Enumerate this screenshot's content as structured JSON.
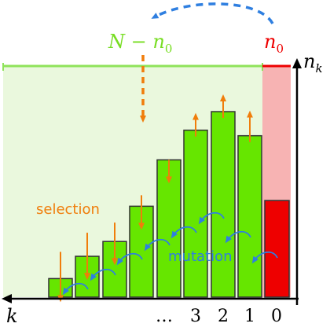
{
  "labels": {
    "N_minus_n0": {
      "main": "N",
      "op": " − ",
      "var": "n",
      "sub": "0"
    },
    "n0": {
      "var": "n",
      "sub": "0"
    },
    "nk": {
      "var": "n",
      "sub": "k"
    },
    "k": "k",
    "selection": "selection",
    "mutation": "mutation",
    "ellipsis": "…",
    "x_ticks": [
      "3",
      "2",
      "1",
      "0"
    ]
  },
  "colors": {
    "green_bar": "#66e600",
    "green_region": "#eaf8dd",
    "green_line": "#8fe35a",
    "green_text": "#77dd22",
    "red": "#ee0000",
    "pink": "#f7b3b3",
    "orange": "#f07d0b",
    "blue": "#2f7fe0"
  },
  "bar_levels": [
    0.1,
    0.22,
    0.3,
    0.49,
    0.74,
    0.9,
    1.0,
    0.87
  ],
  "n0_level": 0.62,
  "region_level": 1.42
}
